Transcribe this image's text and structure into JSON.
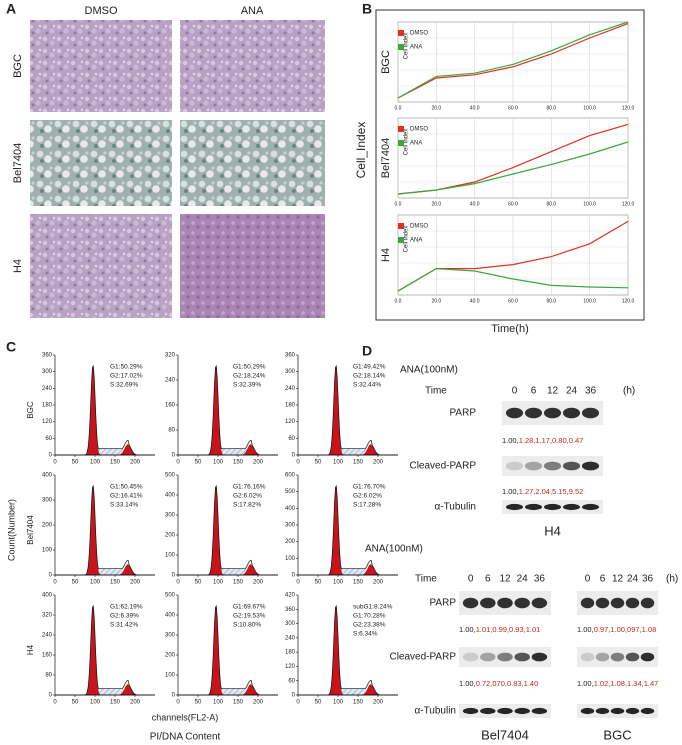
{
  "panel_a": {
    "label": "A",
    "columns": [
      "DMSO",
      "ANA"
    ],
    "rows": [
      "BGC",
      "Bel7404",
      "H4"
    ]
  },
  "panel_b": {
    "label": "B",
    "y_label": "Cell_Index",
    "x_label": "Time(h)",
    "plots": [
      {
        "cell_line": "BGC",
        "axis_label": "Cell Index",
        "ylim": [
          0,
          1
        ],
        "x": [
          0,
          20,
          40,
          60,
          80,
          100,
          120
        ],
        "xticks": [
          {
            "value": 0,
            "label": "0.0"
          },
          {
            "value": 20,
            "label": "20.0"
          },
          {
            "value": 40,
            "label": "40.0"
          },
          {
            "value": 60,
            "label": "60.0"
          },
          {
            "value": 80,
            "label": "80.0"
          },
          {
            "value": 100,
            "label": "100.0"
          },
          {
            "value": 120,
            "label": "120.0"
          }
        ],
        "series": [
          {
            "name": "DMSO",
            "color": "#e03020",
            "values": [
              0.05,
              0.3,
              0.34,
              0.44,
              0.6,
              0.8,
              0.98
            ]
          },
          {
            "name": "ANA",
            "color": "#3aa83a",
            "values": [
              0.05,
              0.32,
              0.36,
              0.47,
              0.64,
              0.84,
              1.0
            ]
          }
        ]
      },
      {
        "cell_line": "Bel7404",
        "axis_label": "Cell Index",
        "ylim": [
          0,
          1
        ],
        "x": [
          0,
          20,
          40,
          60,
          80,
          100,
          120
        ],
        "xticks": [
          {
            "value": 0,
            "label": "0.0"
          },
          {
            "value": 20,
            "label": "20.0"
          },
          {
            "value": 40,
            "label": "40.0"
          },
          {
            "value": 60,
            "label": "60.0"
          },
          {
            "value": 80,
            "label": "80.0"
          },
          {
            "value": 100,
            "label": "100.0"
          },
          {
            "value": 120,
            "label": "120.0"
          }
        ],
        "series": [
          {
            "name": "DMSO",
            "color": "#e03020",
            "values": [
              0.05,
              0.1,
              0.2,
              0.38,
              0.58,
              0.78,
              0.92
            ]
          },
          {
            "name": "ANA",
            "color": "#3aa83a",
            "values": [
              0.05,
              0.1,
              0.18,
              0.3,
              0.42,
              0.55,
              0.7
            ]
          }
        ]
      },
      {
        "cell_line": "H4",
        "axis_label": "Cell Index",
        "ylim": [
          0,
          1
        ],
        "x": [
          0,
          20,
          40,
          60,
          80,
          100,
          120
        ],
        "xticks": [
          {
            "value": 0,
            "label": "0.0"
          },
          {
            "value": 20,
            "label": "20.0"
          },
          {
            "value": 40,
            "label": "40.0"
          },
          {
            "value": 60,
            "label": "60.0"
          },
          {
            "value": 80,
            "label": "80.0"
          },
          {
            "value": 100,
            "label": "100.0"
          },
          {
            "value": 120,
            "label": "120.0"
          }
        ],
        "series": [
          {
            "name": "DMSO",
            "color": "#e03020",
            "values": [
              0.05,
              0.33,
              0.33,
              0.38,
              0.48,
              0.64,
              0.92
            ]
          },
          {
            "name": "ANA",
            "color": "#3aa83a",
            "values": [
              0.05,
              0.33,
              0.3,
              0.2,
              0.12,
              0.1,
              0.09
            ]
          }
        ]
      }
    ]
  },
  "panel_c": {
    "label": "C",
    "y_label": "Count(Number)",
    "x_label": "channels(FL2-A)",
    "subtitle": "PI/DNA Content",
    "rows": [
      "BGC",
      "Bel7404",
      "H4"
    ],
    "xlim": [
      0,
      250
    ],
    "xticks": [
      0,
      50,
      100,
      150,
      200
    ],
    "cells": [
      [
        {
          "yticks": [
            0,
            60,
            120,
            180,
            240,
            300,
            360
          ],
          "stats": [
            "G1:50.29%",
            "G2:17.02%",
            "S:32.69%"
          ]
        },
        {
          "yticks": [
            0,
            80,
            160,
            240,
            320
          ],
          "stats": [
            "G1:50.29%",
            "G2:18.24%",
            "S:32.39%"
          ]
        },
        {
          "yticks": [
            0,
            60,
            120,
            180,
            240,
            300,
            360
          ],
          "stats": [
            "G1:49.42%",
            "G2:18.14%",
            "S:32.44%"
          ]
        }
      ],
      [
        {
          "yticks": [
            0,
            100,
            200,
            300,
            400
          ],
          "stats": [
            "G1:50.45%",
            "G2:16.41%",
            "S:33.14%"
          ]
        },
        {
          "yticks": [
            0,
            100,
            200,
            300,
            400,
            500
          ],
          "stats": [
            "G1:76.16%",
            "G2:6.02%",
            "S:17.82%"
          ]
        },
        {
          "yticks": [
            0,
            100,
            200,
            300,
            400,
            500,
            600
          ],
          "stats": [
            "G1:76.70%",
            "G2:6.02%",
            "S:17.28%"
          ]
        }
      ],
      [
        {
          "yticks": [
            0,
            80,
            160,
            240,
            320,
            400
          ],
          "stats": [
            "G1:62.19%",
            "G2:6.39%",
            "S:31.42%"
          ]
        },
        {
          "yticks": [
            0,
            100,
            200,
            300,
            400,
            500
          ],
          "stats": [
            "G1:69.67%",
            "G2:19.53%",
            "S:10.80%"
          ]
        },
        {
          "yticks": [
            0,
            60,
            120,
            180,
            240,
            300,
            360,
            420
          ],
          "sub_stat": "subG1:8.24%",
          "stats": [
            "G1:70.28%",
            "G2:23.38%",
            "S:6.34%"
          ]
        }
      ]
    ]
  },
  "panel_d": {
    "label": "D",
    "blocks": [
      {
        "treatment": "ANA(100nM)",
        "time_label": "Time",
        "unit": "(h)",
        "rows": [
          "PARP",
          "Cleaved-PARP",
          "α-Tubulin"
        ],
        "lanes": [
          {
            "name": "H4",
            "times": [
              0,
              6,
              12,
              24,
              36
            ],
            "parp_ratio": {
              "base": "1.00,",
              "treated": "1.28,1.17,0.80,0.47"
            },
            "cleaved_ratio": {
              "base": "1.00,",
              "treated": "1.27,2.04,5.15,9.52"
            }
          }
        ]
      },
      {
        "treatment": "ANA(100nM)",
        "time_label": "Time",
        "unit": "(h)",
        "rows": [
          "PARP",
          "Cleaved-PARP",
          "α-Tubulin"
        ],
        "lanes": [
          {
            "name": "Bel7404",
            "times": [
              0,
              6,
              12,
              24,
              36
            ],
            "parp_ratio": {
              "base": "1.00,",
              "treated": "1.01,0.99,0.93,1.01"
            },
            "cleaved_ratio": {
              "base": "1.00,",
              "treated": "0.72,070,0.83,1.40"
            }
          },
          {
            "name": "BGC",
            "times": [
              0,
              6,
              12,
              24,
              36
            ],
            "parp_ratio": {
              "base": "1.00,",
              "treated": "0.97,1.00,097,1.08"
            },
            "cleaved_ratio": {
              "base": "1.00,",
              "treated": "1.02,1.08,1.34,1.47"
            }
          }
        ]
      }
    ]
  }
}
